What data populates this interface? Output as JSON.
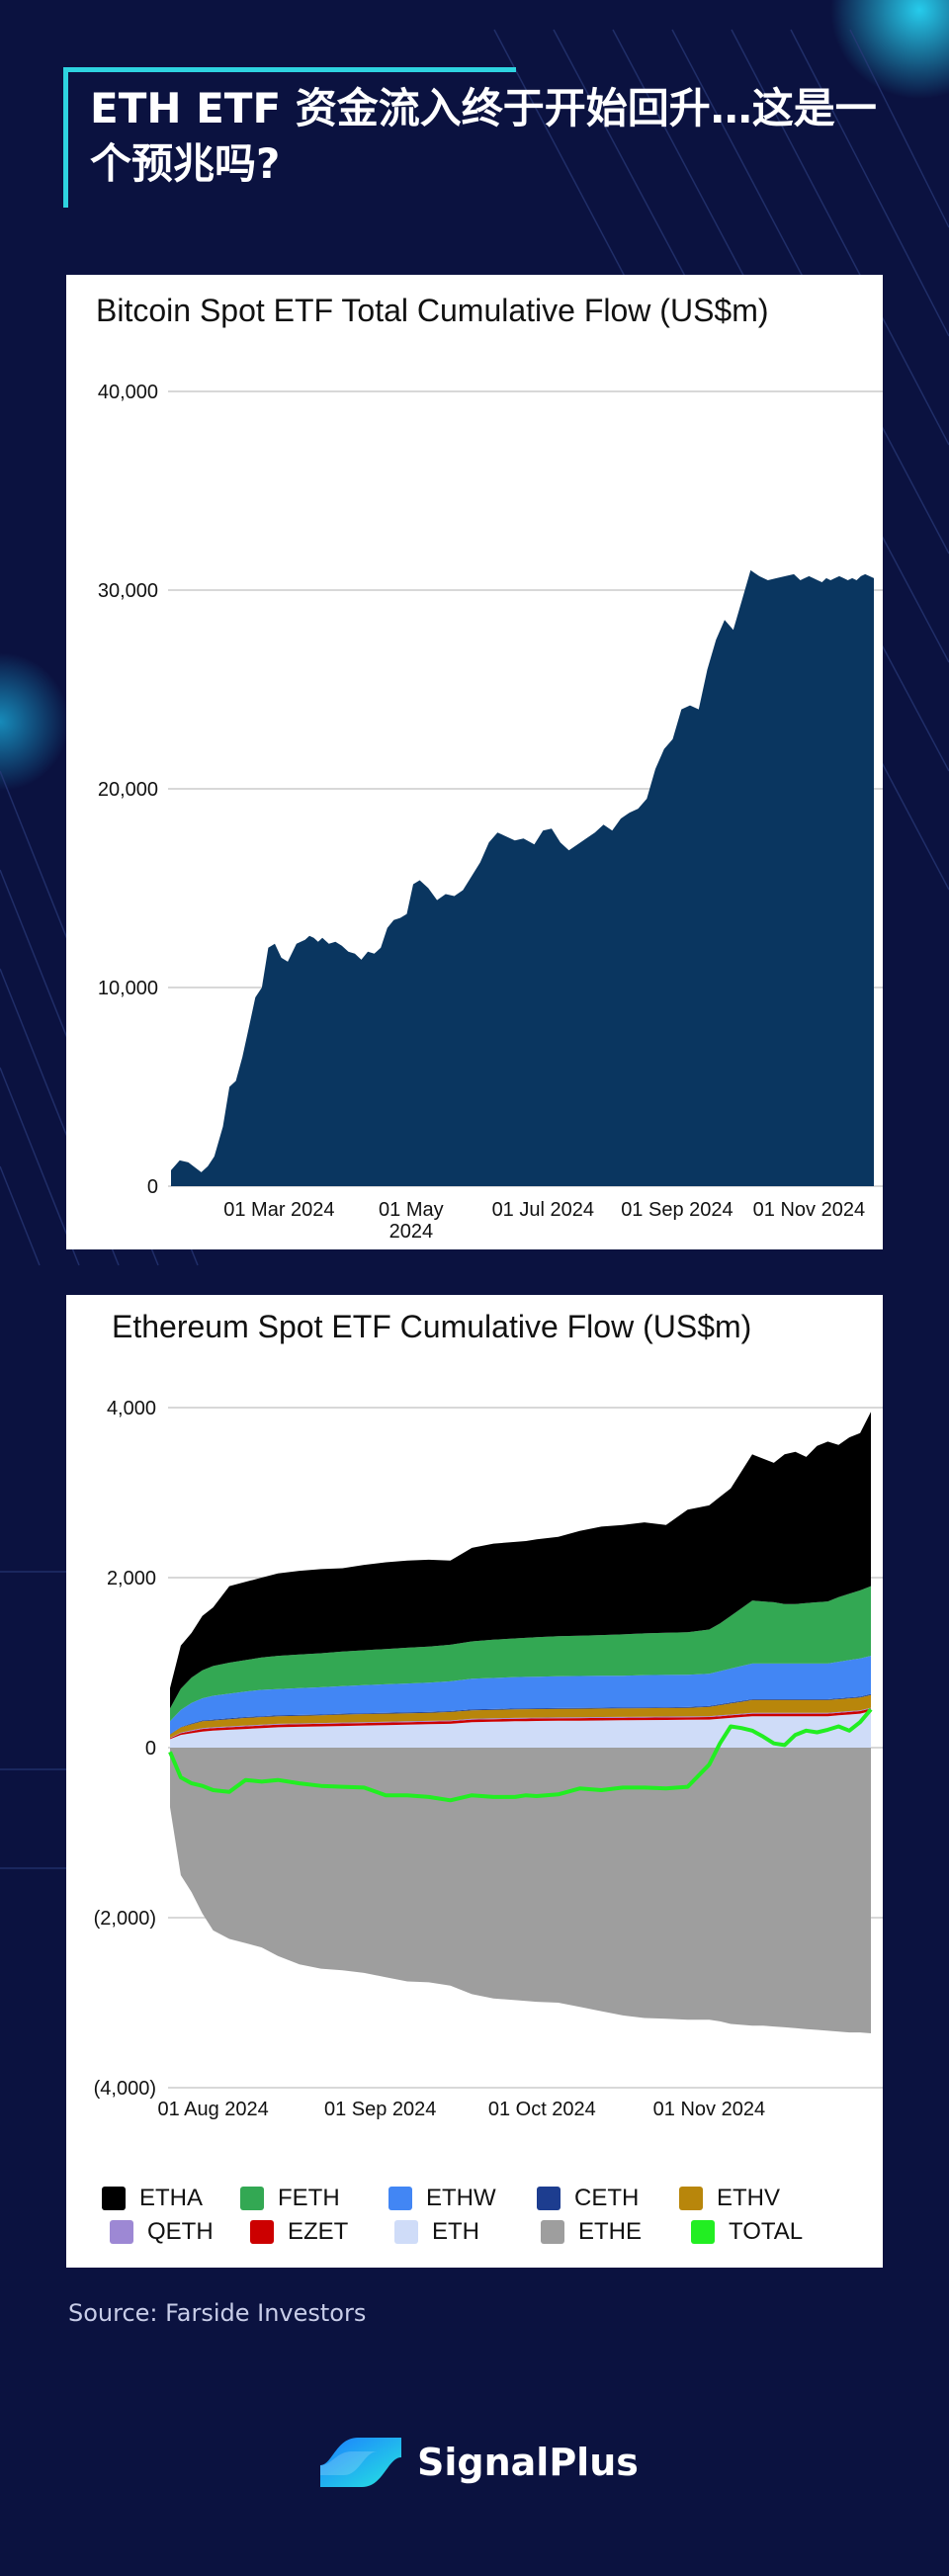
{
  "page": {
    "title": "ETH ETF 资金流入终于开始回升…这是一个预兆吗?",
    "source": "Source: Farside Investors",
    "brand": "SignalPlus",
    "colors": {
      "background": "#0b1240",
      "accent": "#2ed3e0"
    }
  },
  "chart_data": [
    {
      "type": "area",
      "title": "Bitcoin Spot ETF Total Cumulative Flow (US$m)",
      "xlabel": "",
      "ylabel": "",
      "ylim": [
        0,
        40000
      ],
      "yticks": [
        0,
        10000,
        20000,
        30000,
        40000
      ],
      "ytick_labels": [
        "0",
        "10,000",
        "20,000",
        "30,000",
        "40,000"
      ],
      "xticks": [
        {
          "label": "01 Mar 2024",
          "day": 50
        },
        {
          "label": "01 May 2024",
          "day": 111
        },
        {
          "label": "01 Jul 2024",
          "day": 172
        },
        {
          "label": "01 Sep 2024",
          "day": 234
        },
        {
          "label": "01 Nov 2024",
          "day": 295
        }
      ],
      "grid": true,
      "color": "#0a3660",
      "series": [
        {
          "name": "Total",
          "x": [
            0,
            4,
            8,
            14,
            17,
            20,
            24,
            27,
            30,
            33,
            36,
            39,
            42,
            45,
            48,
            51,
            54,
            58,
            62,
            64,
            66,
            68,
            70,
            73,
            76,
            79,
            82,
            85,
            88,
            91,
            94,
            97,
            100,
            103,
            106,
            109,
            112,
            115,
            119,
            123,
            127,
            131,
            135,
            139,
            143,
            147,
            151,
            155,
            159,
            163,
            168,
            172,
            176,
            180,
            184,
            188,
            192,
            196,
            200,
            204,
            208,
            212,
            216,
            220,
            224,
            228,
            232,
            236,
            240,
            244,
            248,
            252,
            256,
            260,
            264,
            268,
            272,
            276,
            280,
            284,
            288,
            291,
            293,
            295,
            297,
            299,
            301,
            303,
            305,
            307,
            309,
            311,
            313,
            315,
            317,
            319,
            321,
            323,
            325
          ],
          "values": [
            800,
            1300,
            1200,
            700,
            1000,
            1500,
            3000,
            5000,
            5300,
            6500,
            8000,
            9500,
            10000,
            12000,
            12200,
            11500,
            11300,
            12200,
            12400,
            12600,
            12500,
            12300,
            12500,
            12200,
            12300,
            12100,
            11800,
            11700,
            11400,
            11800,
            11700,
            12000,
            13000,
            13400,
            13500,
            13700,
            15200,
            15400,
            15000,
            14400,
            14700,
            14600,
            14900,
            15600,
            16300,
            17300,
            17800,
            17600,
            17400,
            17500,
            17200,
            17900,
            18000,
            17300,
            16900,
            17200,
            17500,
            17800,
            18200,
            17900,
            18500,
            18800,
            19000,
            19500,
            21000,
            22000,
            22500,
            24000,
            24200,
            24000,
            26000,
            27500,
            28500,
            28000,
            29500,
            31000,
            30700,
            30500,
            30600,
            30700,
            30800,
            30500,
            30600,
            30700,
            30600,
            30500,
            30400,
            30600,
            30500,
            30600,
            30700,
            30600,
            30500,
            30600,
            30500,
            30700,
            30800,
            30700,
            30600
          ]
        }
      ]
    },
    {
      "type": "area",
      "title": "Ethereum Spot ETF Cumulative Flow (US$m)",
      "xlabel": "",
      "ylabel": "",
      "ylim": [
        -4000,
        4000
      ],
      "yticks": [
        -4000,
        -2000,
        0,
        2000,
        4000
      ],
      "ytick_labels": [
        "(4,000)",
        "(2,000)",
        "0",
        "2,000",
        "4,000"
      ],
      "xticks": [
        {
          "label": "01 Aug 2024",
          "day": 8
        },
        {
          "label": "01 Sep 2024",
          "day": 39
        },
        {
          "label": "01 Oct 2024",
          "day": 69
        },
        {
          "label": "01 Nov 2024",
          "day": 100
        }
      ],
      "grid": true,
      "x": [
        0,
        2,
        4,
        6,
        8,
        11,
        14,
        17,
        20,
        24,
        28,
        32,
        36,
        40,
        44,
        48,
        52,
        56,
        60,
        64,
        66,
        68,
        72,
        76,
        80,
        84,
        88,
        92,
        96,
        100,
        102,
        104,
        106,
        108,
        110,
        112,
        114,
        116,
        118,
        120,
        122,
        124,
        126,
        128,
        130
      ],
      "stack_top": [
        700,
        1200,
        1350,
        1550,
        1650,
        1900,
        1950,
        2000,
        2050,
        2080,
        2100,
        2110,
        2150,
        2180,
        2200,
        2210,
        2200,
        2350,
        2400,
        2420,
        2430,
        2450,
        2480,
        2550,
        2600,
        2620,
        2650,
        2620,
        2800,
        2850,
        2950,
        3050,
        3250,
        3450,
        3400,
        3350,
        3450,
        3480,
        3420,
        3550,
        3600,
        3560,
        3650,
        3700,
        3950
      ],
      "series": [
        {
          "name": "ETHE",
          "color": "#9e9e9e",
          "values": [
            -700,
            -1500,
            -1700,
            -1950,
            -2150,
            -2250,
            -2300,
            -2350,
            -2450,
            -2550,
            -2600,
            -2620,
            -2650,
            -2700,
            -2750,
            -2760,
            -2800,
            -2900,
            -2950,
            -2970,
            -2980,
            -2990,
            -3000,
            -3050,
            -3100,
            -3150,
            -3180,
            -3190,
            -3200,
            -3200,
            -3220,
            -3250,
            -3260,
            -3270,
            -3270,
            -3280,
            -3290,
            -3300,
            -3310,
            -3320,
            -3330,
            -3340,
            -3350,
            -3350,
            -3360
          ]
        },
        {
          "name": "ETH",
          "color": "#cfdcf8",
          "values": [
            100,
            150,
            170,
            190,
            200,
            210,
            220,
            230,
            240,
            245,
            250,
            255,
            260,
            265,
            270,
            275,
            280,
            300,
            305,
            310,
            312,
            314,
            316,
            318,
            320,
            322,
            324,
            326,
            328,
            330,
            340,
            350,
            360,
            370,
            370,
            370,
            370,
            370,
            370,
            370,
            370,
            380,
            390,
            400,
            430
          ]
        },
        {
          "name": "EZET",
          "color": "#cc0000",
          "values": [
            10,
            20,
            25,
            30,
            30,
            30,
            30,
            30,
            30,
            30,
            30,
            30,
            30,
            30,
            30,
            30,
            30,
            30,
            30,
            30,
            30,
            30,
            30,
            30,
            30,
            30,
            30,
            30,
            30,
            30,
            30,
            30,
            30,
            30,
            30,
            30,
            30,
            30,
            30,
            30,
            30,
            30,
            30,
            30,
            30
          ]
        },
        {
          "name": "QETH",
          "color": "#9d88d4",
          "values": [
            5,
            8,
            10,
            10,
            10,
            10,
            10,
            10,
            10,
            10,
            10,
            10,
            10,
            10,
            10,
            10,
            10,
            10,
            10,
            10,
            10,
            10,
            10,
            10,
            10,
            10,
            10,
            10,
            10,
            10,
            10,
            10,
            10,
            10,
            10,
            10,
            10,
            10,
            10,
            10,
            10,
            10,
            10,
            10,
            10
          ]
        },
        {
          "name": "ETHV",
          "color": "#b8860b",
          "values": [
            40,
            60,
            70,
            80,
            80,
            85,
            90,
            90,
            90,
            90,
            90,
            95,
            95,
            95,
            95,
            95,
            100,
            100,
            100,
            100,
            100,
            100,
            100,
            100,
            100,
            100,
            100,
            100,
            100,
            110,
            120,
            130,
            140,
            150,
            150,
            150,
            150,
            150,
            150,
            150,
            150,
            150,
            150,
            150,
            150
          ]
        },
        {
          "name": "CETH",
          "color": "#1d3d8f",
          "values": [
            5,
            5,
            10,
            10,
            10,
            10,
            10,
            10,
            10,
            10,
            10,
            10,
            10,
            10,
            10,
            10,
            10,
            10,
            10,
            10,
            10,
            10,
            10,
            10,
            10,
            10,
            10,
            10,
            10,
            10,
            10,
            10,
            10,
            10,
            10,
            10,
            10,
            10,
            10,
            10,
            10,
            10,
            10,
            10,
            10
          ]
        },
        {
          "name": "ETHW",
          "color": "#4286f4",
          "values": [
            150,
            200,
            240,
            260,
            280,
            290,
            300,
            310,
            310,
            315,
            320,
            325,
            330,
            335,
            340,
            345,
            350,
            360,
            365,
            370,
            370,
            370,
            375,
            375,
            375,
            375,
            380,
            380,
            380,
            380,
            390,
            400,
            410,
            420,
            420,
            420,
            420,
            420,
            420,
            420,
            420,
            430,
            440,
            450,
            450
          ]
        },
        {
          "name": "FETH",
          "color": "#33a853",
          "values": [
            150,
            250,
            300,
            330,
            350,
            365,
            370,
            380,
            390,
            395,
            400,
            405,
            410,
            415,
            420,
            425,
            430,
            440,
            450,
            455,
            460,
            465,
            470,
            475,
            480,
            485,
            490,
            495,
            500,
            520,
            560,
            620,
            680,
            740,
            730,
            720,
            700,
            700,
            710,
            720,
            730,
            760,
            780,
            800,
            820
          ]
        }
      ],
      "total": {
        "name": "TOTAL",
        "color": "#22ee22",
        "values": [
          -50,
          -350,
          -420,
          -450,
          -500,
          -520,
          -380,
          -400,
          -380,
          -420,
          -450,
          -460,
          -470,
          -560,
          -560,
          -580,
          -620,
          -560,
          -580,
          -580,
          -560,
          -570,
          -550,
          -480,
          -500,
          -470,
          -470,
          -480,
          -460,
          -200,
          50,
          250,
          230,
          200,
          130,
          50,
          30,
          150,
          200,
          180,
          210,
          250,
          200,
          300,
          450
        ]
      },
      "legend": [
        "ETHA",
        "FETH",
        "ETHW",
        "CETH",
        "ETHV",
        "QETH",
        "EZET",
        "ETH",
        "ETHE",
        "TOTAL"
      ],
      "legend_colors": [
        "#000000",
        "#33a853",
        "#4286f4",
        "#1d3d8f",
        "#b8860b",
        "#9d88d4",
        "#cc0000",
        "#cfdcf8",
        "#9e9e9e",
        "#22ee22"
      ]
    }
  ]
}
